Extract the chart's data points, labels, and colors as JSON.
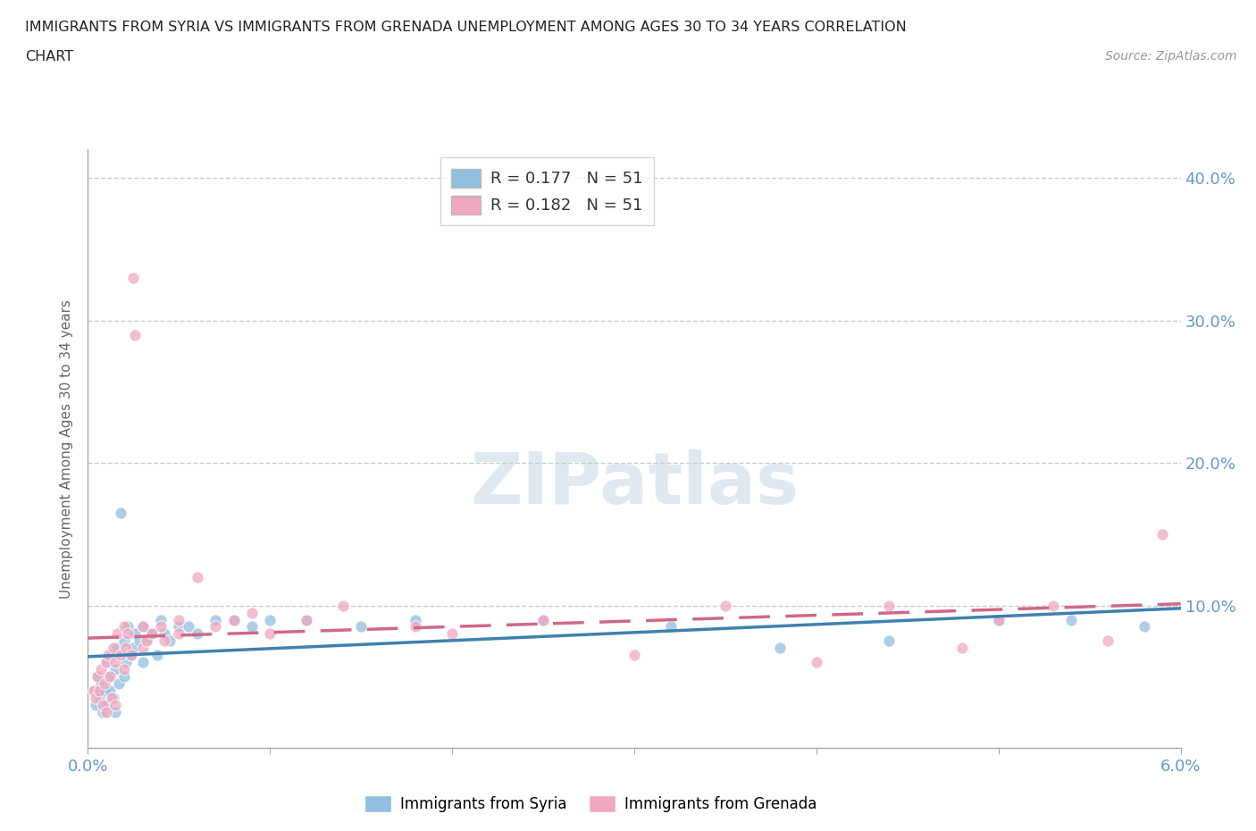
{
  "title_line1": "IMMIGRANTS FROM SYRIA VS IMMIGRANTS FROM GRENADA UNEMPLOYMENT AMONG AGES 30 TO 34 YEARS CORRELATION",
  "title_line2": "CHART",
  "source_text": "Source: ZipAtlas.com",
  "ylabel": "Unemployment Among Ages 30 to 34 years",
  "xlim": [
    0.0,
    0.06
  ],
  "ylim": [
    0.0,
    0.42
  ],
  "legend_r_entries": [
    {
      "label": "R = 0.177   N = 51",
      "color": "#a8c4e0"
    },
    {
      "label": "R = 0.182   N = 51",
      "color": "#f0a0b8"
    }
  ],
  "syria_color": "#90bfdf",
  "grenada_color": "#f0a8c0",
  "syria_line_color": "#4080b0",
  "grenada_line_color": "#d06888",
  "background_color": "#ffffff",
  "grid_color": "#cccccc",
  "right_tick_color": "#6699cc",
  "x_tick_color": "#6699cc",
  "syria_x": [
    0.0003,
    0.0004,
    0.0005,
    0.0006,
    0.0007,
    0.0008,
    0.0009,
    0.001,
    0.001,
    0.0011,
    0.0012,
    0.0013,
    0.0014,
    0.0015,
    0.0015,
    0.0016,
    0.0017,
    0.0018,
    0.002,
    0.002,
    0.0021,
    0.0022,
    0.0024,
    0.0025,
    0.0026,
    0.0028,
    0.003,
    0.003,
    0.0032,
    0.0035,
    0.0038,
    0.004,
    0.0042,
    0.0045,
    0.005,
    0.0055,
    0.006,
    0.007,
    0.008,
    0.009,
    0.01,
    0.012,
    0.015,
    0.018,
    0.025,
    0.032,
    0.038,
    0.044,
    0.05,
    0.054,
    0.058
  ],
  "syria_y": [
    0.04,
    0.03,
    0.05,
    0.035,
    0.045,
    0.025,
    0.04,
    0.06,
    0.03,
    0.05,
    0.04,
    0.065,
    0.035,
    0.055,
    0.025,
    0.07,
    0.045,
    0.165,
    0.05,
    0.075,
    0.06,
    0.085,
    0.065,
    0.07,
    0.08,
    0.075,
    0.06,
    0.085,
    0.075,
    0.08,
    0.065,
    0.09,
    0.08,
    0.075,
    0.085,
    0.085,
    0.08,
    0.09,
    0.09,
    0.085,
    0.09,
    0.09,
    0.085,
    0.09,
    0.09,
    0.085,
    0.07,
    0.075,
    0.09,
    0.09,
    0.085
  ],
  "grenada_x": [
    0.0003,
    0.0004,
    0.0005,
    0.0006,
    0.0007,
    0.0008,
    0.0009,
    0.001,
    0.001,
    0.0011,
    0.0012,
    0.0013,
    0.0014,
    0.0015,
    0.0015,
    0.0016,
    0.0018,
    0.002,
    0.002,
    0.0021,
    0.0022,
    0.0024,
    0.0025,
    0.0026,
    0.003,
    0.003,
    0.0032,
    0.0035,
    0.004,
    0.0042,
    0.005,
    0.005,
    0.006,
    0.007,
    0.008,
    0.009,
    0.01,
    0.012,
    0.014,
    0.018,
    0.02,
    0.025,
    0.03,
    0.035,
    0.04,
    0.044,
    0.048,
    0.05,
    0.053,
    0.056,
    0.059
  ],
  "grenada_y": [
    0.04,
    0.035,
    0.05,
    0.04,
    0.055,
    0.03,
    0.045,
    0.06,
    0.025,
    0.065,
    0.05,
    0.035,
    0.07,
    0.06,
    0.03,
    0.08,
    0.065,
    0.055,
    0.085,
    0.07,
    0.08,
    0.065,
    0.33,
    0.29,
    0.07,
    0.085,
    0.075,
    0.08,
    0.085,
    0.075,
    0.09,
    0.08,
    0.12,
    0.085,
    0.09,
    0.095,
    0.08,
    0.09,
    0.1,
    0.085,
    0.08,
    0.09,
    0.065,
    0.1,
    0.06,
    0.1,
    0.07,
    0.09,
    0.1,
    0.075,
    0.15
  ]
}
